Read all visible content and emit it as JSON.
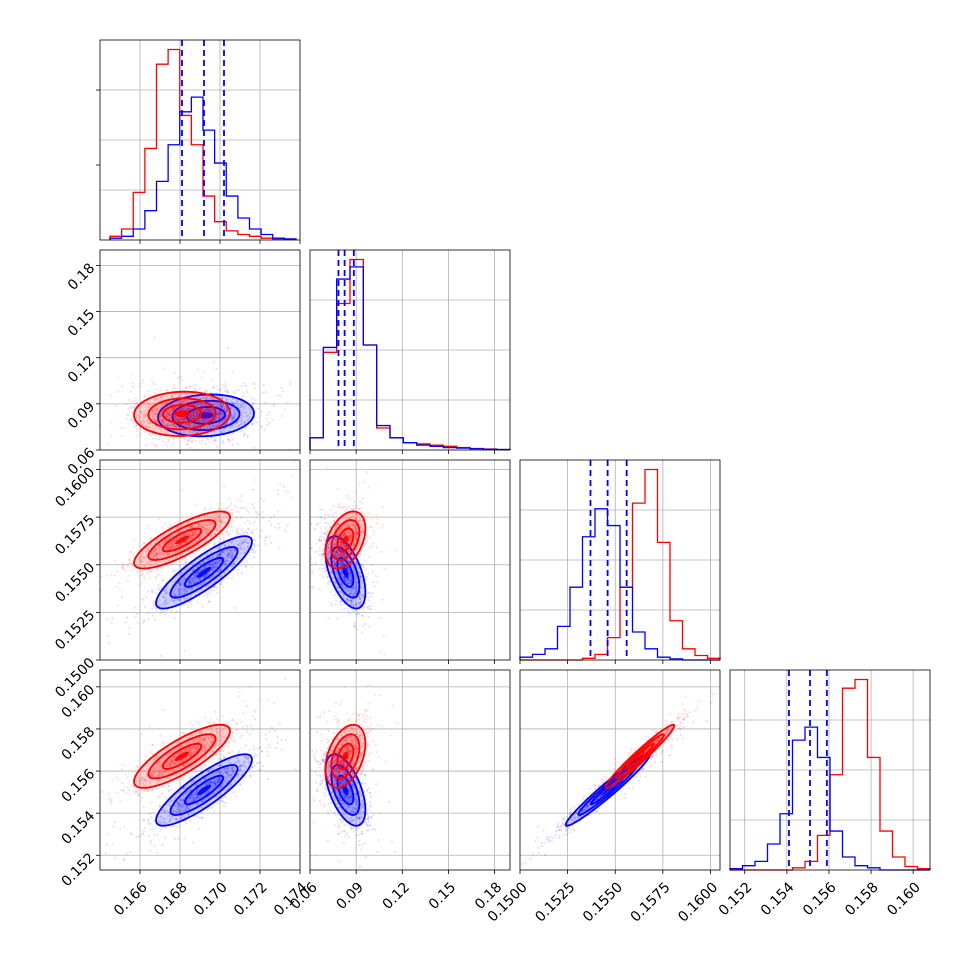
{
  "chart_data": {
    "type": "scatter",
    "kind": "corner-plot",
    "grid": true,
    "series": [
      {
        "color": "#0000ff"
      },
      {
        "color": "#ff0000"
      }
    ],
    "parameters": [
      {
        "index": 0,
        "range": [
          0.164,
          0.174
        ],
        "ticks": [
          "0.166",
          "0.168",
          "0.170",
          "0.172",
          "0.174"
        ]
      },
      {
        "index": 1,
        "range": [
          0.06,
          0.19
        ],
        "ticks": [
          "0.06",
          "0.09",
          "0.12",
          "0.15",
          "0.18"
        ]
      },
      {
        "index": 2,
        "range": [
          0.15,
          0.1605
        ],
        "ticks": [
          "0.1500",
          "0.1525",
          "0.1550",
          "0.1575",
          "0.1600"
        ]
      },
      {
        "index": 3,
        "range": [
          0.1513,
          0.1608
        ],
        "ticks": [
          "0.152",
          "0.154",
          "0.156",
          "0.158",
          "0.160"
        ]
      }
    ],
    "quantiles_blue": [
      [
        0.1681,
        0.1692,
        0.1702
      ],
      [
        0.0785,
        0.0825,
        0.0885
      ],
      [
        0.1537,
        0.1546,
        0.1556
      ],
      [
        0.1541,
        0.1551,
        0.1559
      ]
    ],
    "histograms": [
      {
        "param": 0,
        "bin_edges_range": [
          0.1645,
          0.1738
        ],
        "blue": [
          0.5,
          1,
          3,
          8,
          16,
          26,
          35,
          39,
          30,
          21,
          12,
          6,
          3,
          1.5,
          0.5,
          0.3
        ],
        "red": [
          1,
          3,
          13,
          25,
          48,
          52,
          34,
          26,
          12,
          5,
          2.5,
          1.5,
          1,
          0.5,
          0.3,
          0.2
        ]
      },
      {
        "param": 1,
        "bin_edges_range": [
          0.06,
          0.19
        ],
        "blue": [
          5,
          42,
          70,
          75,
          43,
          10,
          5,
          3,
          2,
          1.5,
          1,
          0.8,
          0.5,
          0.3,
          0.2
        ],
        "red": [
          5,
          40,
          60,
          78,
          43,
          9,
          5,
          3,
          2.5,
          2,
          1.5,
          1,
          0.6,
          0.4,
          0.2
        ]
      },
      {
        "param": 2,
        "bin_edges_range": [
          0.15,
          0.1605
        ],
        "blue": [
          0.5,
          1,
          2,
          6,
          13,
          22,
          27,
          24,
          13,
          5,
          2,
          0.5,
          0.2,
          0,
          0,
          0
        ],
        "red": [
          0,
          0,
          0,
          0,
          0,
          0.3,
          1,
          4,
          13,
          28,
          34,
          21,
          7,
          2,
          0.8,
          0.3
        ]
      },
      {
        "param": 3,
        "bin_edges_range": [
          0.1513,
          0.1608
        ],
        "blue": [
          0.3,
          1,
          2,
          6,
          13,
          30,
          33,
          26,
          9,
          3,
          1,
          0.5,
          0,
          0,
          0,
          0
        ],
        "red": [
          0,
          0,
          0,
          0,
          0,
          0.5,
          2,
          8,
          22,
          42,
          44,
          26,
          9,
          3,
          0.8,
          0.3
        ]
      }
    ],
    "scatter_blobs": [
      {
        "row": 1,
        "col": 0,
        "blue": {
          "mean": [
            0.1693,
            0.0825
          ],
          "std": [
            0.0012,
            0.0068
          ],
          "rho": 0.1
        },
        "red": {
          "mean": [
            0.1681,
            0.0835
          ],
          "std": [
            0.0012,
            0.0072
          ],
          "rho": 0.05
        }
      },
      {
        "row": 2,
        "col": 0,
        "blue": {
          "mean": [
            0.1692,
            0.1546
          ],
          "std": [
            0.0012,
            0.00095
          ],
          "rho": 0.85
        },
        "red": {
          "mean": [
            0.1681,
            0.1563
          ],
          "std": [
            0.0012,
            0.00075
          ],
          "rho": 0.8
        }
      },
      {
        "row": 2,
        "col": 1,
        "blue": {
          "mean": [
            0.083,
            0.1546
          ],
          "std": [
            0.0065,
            0.00095
          ],
          "rho": -0.55
        },
        "red": {
          "mean": [
            0.083,
            0.1563
          ],
          "std": [
            0.0065,
            0.00075
          ],
          "rho": 0.4
        }
      },
      {
        "row": 3,
        "col": 0,
        "blue": {
          "mean": [
            0.1692,
            0.1551
          ],
          "std": [
            0.0012,
            0.00085
          ],
          "rho": 0.85
        },
        "red": {
          "mean": [
            0.1681,
            0.1567
          ],
          "std": [
            0.0012,
            0.00075
          ],
          "rho": 0.8
        }
      },
      {
        "row": 3,
        "col": 1,
        "blue": {
          "mean": [
            0.083,
            0.1551
          ],
          "std": [
            0.0065,
            0.00085
          ],
          "rho": -0.55
        },
        "red": {
          "mean": [
            0.083,
            0.1567
          ],
          "std": [
            0.0065,
            0.00075
          ],
          "rho": 0.4
        }
      },
      {
        "row": 3,
        "col": 2,
        "blue": {
          "mean": [
            0.1546,
            0.1551
          ],
          "std": [
            0.0011,
            0.00085
          ],
          "rho": 0.97
        },
        "red": {
          "mean": [
            0.1563,
            0.1567
          ],
          "std": [
            0.0009,
            0.00075
          ],
          "rho": 0.97
        }
      }
    ]
  }
}
